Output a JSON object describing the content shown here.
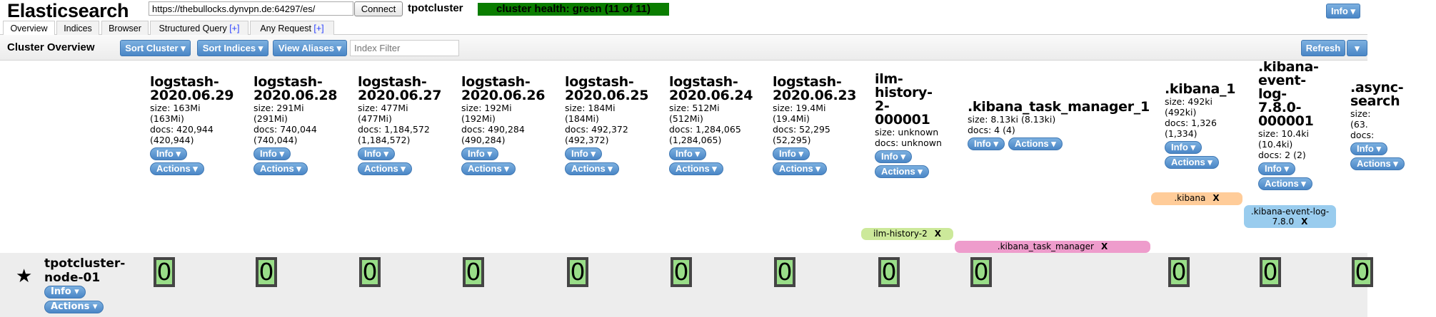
{
  "header": {
    "brand": "Elasticsearch",
    "url": "https://thebullocks.dynvpn.de:64297/es/",
    "connect_label": "Connect",
    "cluster_name": "tpotcluster",
    "health": "cluster health: green (11 of 11)",
    "health_color": "#0a7d00",
    "info_label": "Info"
  },
  "tabs": [
    {
      "label": "Overview",
      "active": true
    },
    {
      "label": "Indices"
    },
    {
      "label": "Browser"
    },
    {
      "label": "Structured Query",
      "plus": "[+]"
    },
    {
      "label": "Any Request",
      "plus": "[+]"
    }
  ],
  "toolbar": {
    "title": "Cluster Overview",
    "sort_cluster": "Sort Cluster",
    "sort_indices": "Sort Indices",
    "view_aliases": "View Aliases",
    "filter_placeholder": "Index Filter",
    "refresh": "Refresh"
  },
  "buttons": {
    "info": "Info",
    "actions": "Actions",
    "caret": "▾"
  },
  "indices": [
    {
      "title": "logstash-2020.06.29",
      "lines": [
        "size: 163Mi",
        "(163Mi)",
        "docs: 420,944",
        "(420,944)"
      ],
      "shard": "0"
    },
    {
      "title": "logstash-2020.06.28",
      "lines": [
        "size: 291Mi",
        "(291Mi)",
        "docs: 740,044",
        "(740,044)"
      ],
      "shard": "0"
    },
    {
      "title": "logstash-2020.06.27",
      "lines": [
        "size: 477Mi",
        "(477Mi)",
        "docs: 1,184,572",
        "(1,184,572)"
      ],
      "shard": "0"
    },
    {
      "title": "logstash-2020.06.26",
      "lines": [
        "size: 192Mi",
        "(192Mi)",
        "docs: 490,284",
        "(490,284)"
      ],
      "shard": "0"
    },
    {
      "title": "logstash-2020.06.25",
      "lines": [
        "size: 184Mi",
        "(184Mi)",
        "docs: 492,372",
        "(492,372)"
      ],
      "shard": "0"
    },
    {
      "title": "logstash-2020.06.24",
      "lines": [
        "size: 512Mi",
        "(512Mi)",
        "docs: 1,284,065",
        "(1,284,065)"
      ],
      "shard": "0"
    },
    {
      "title": "logstash-2020.06.23",
      "lines": [
        "size: 19.4Mi",
        "(19.4Mi)",
        "docs: 52,295",
        "(52,295)"
      ],
      "shard": "0"
    },
    {
      "title": "ilm-history-2-000001",
      "lines": [
        "size: unknown",
        "docs: unknown"
      ],
      "shard": "0"
    },
    {
      "title": ".kibana_task_manager_1",
      "lines": [
        "size: 8.13ki (8.13ki)",
        "docs: 4 (4)"
      ],
      "shard": "0",
      "inline_buttons": true
    },
    {
      "title": ".kibana_1",
      "lines": [
        "size: 492ki",
        "(492ki)",
        "docs: 1,326",
        "(1,334)"
      ],
      "shard": "0"
    },
    {
      "title": ".kibana-event-log-7.8.0-000001",
      "lines": [
        "size: 10.4ki",
        "(10.4ki)",
        "docs: 2 (2)"
      ],
      "shard": "0"
    },
    {
      "title": ".async-search",
      "lines": [
        "size:",
        "(63.",
        "docs:"
      ],
      "shard": "0"
    }
  ],
  "aliases": [
    {
      "label": "ilm-history-2",
      "color": "#cce99a"
    },
    {
      "label": ".kibana_task_manager",
      "color": "#ee9ccc"
    },
    {
      "label": ".kibana",
      "color": "#ffcc99"
    },
    {
      "label": ".kibana-event-log-7.8.0",
      "color": "#99ccee"
    }
  ],
  "alias_remove": "X",
  "node": {
    "name": "tpotcluster-node-01",
    "master_icon": "star-icon"
  }
}
